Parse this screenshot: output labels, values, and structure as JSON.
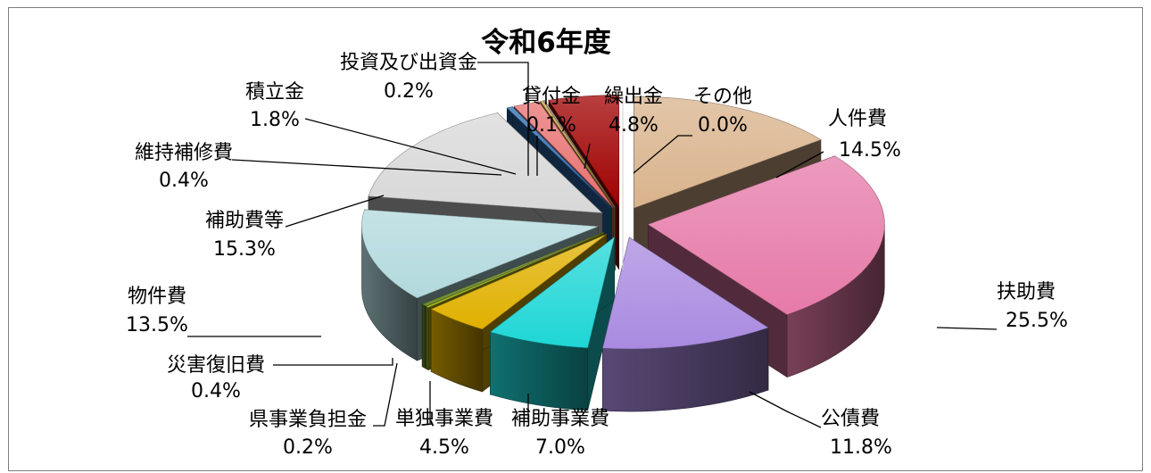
{
  "chart_data": {
    "type": "pie",
    "style": "3d-exploded",
    "title": "令和6年度",
    "legend": "none",
    "slices": [
      {
        "name": "人件費",
        "value": 14.5,
        "label": "14.5%",
        "color": "#d9b38c"
      },
      {
        "name": "扶助費",
        "value": 25.5,
        "label": "25.5%",
        "color": "#e67aa8"
      },
      {
        "name": "公債費",
        "value": 11.8,
        "label": "11.8%",
        "color": "#a98ae0"
      },
      {
        "name": "補助事業費",
        "value": 7.0,
        "label": "7.0%",
        "color": "#1fd6d6"
      },
      {
        "name": "単独事業費",
        "value": 4.5,
        "label": "4.5%",
        "color": "#e0b000"
      },
      {
        "name": "県事業負担金",
        "value": 0.2,
        "label": "0.2%",
        "color": "#b0c020"
      },
      {
        "name": "災害復旧費",
        "value": 0.4,
        "label": "0.4%",
        "color": "#6a8a30"
      },
      {
        "name": "物件費",
        "value": 13.5,
        "label": "13.5%",
        "color": "#b2d9dd"
      },
      {
        "name": "補助費等",
        "value": 15.3,
        "label": "15.3%",
        "color": "#d8d8d8"
      },
      {
        "name": "維持補修費",
        "value": 0.4,
        "label": "0.4%",
        "color": "#2a6cb0"
      },
      {
        "name": "積立金",
        "value": 1.8,
        "label": "1.8%",
        "color": "#e87070"
      },
      {
        "name": "投資及び出資金",
        "value": 0.2,
        "label": "0.2%",
        "color": "#c8a040"
      },
      {
        "name": "貸付金",
        "value": 0.1,
        "label": "0.1%",
        "color": "#9a9a9a"
      },
      {
        "name": "繰出金",
        "value": 4.8,
        "label": "4.8%",
        "color": "#a00000"
      },
      {
        "name": "その他",
        "value": 0.0,
        "label": "0.0%",
        "color": "#ffffff"
      }
    ]
  }
}
